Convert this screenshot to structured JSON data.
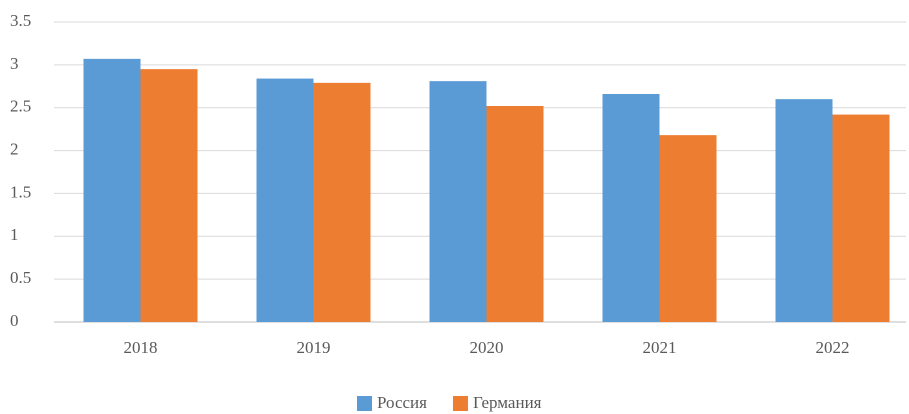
{
  "chart_data": {
    "type": "bar",
    "categories": [
      "2018",
      "2019",
      "2020",
      "2021",
      "2022"
    ],
    "series": [
      {
        "name": "Россия",
        "color": "#5b9bd5",
        "values": [
          3.07,
          2.84,
          2.81,
          2.66,
          2.6
        ]
      },
      {
        "name": "Германия",
        "color": "#ed7d31",
        "values": [
          2.95,
          2.79,
          2.52,
          2.18,
          2.42
        ]
      }
    ],
    "ylim": [
      0,
      3.5
    ],
    "yticks": [
      0,
      0.5,
      1,
      1.5,
      2,
      2.5,
      3,
      3.5
    ],
    "grid": true,
    "legend": "bottom"
  }
}
